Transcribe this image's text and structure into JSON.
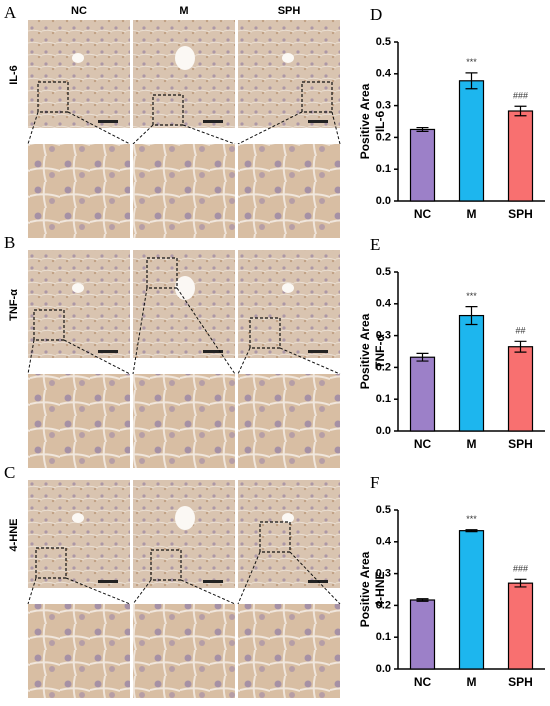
{
  "image_panels": {
    "panel_labels": [
      "A",
      "B",
      "C"
    ],
    "columns": [
      "NC",
      "M",
      "SPH"
    ],
    "rows": [
      "IL-6",
      "TNF-α",
      "4-HNE"
    ]
  },
  "chart_data": [
    {
      "type": "bar",
      "panel_label": "D",
      "ylabel_lines": [
        "Positive Area",
        "IL-6"
      ],
      "categories": [
        "NC",
        "M",
        "SPH"
      ],
      "values": [
        0.225,
        0.378,
        0.283
      ],
      "errors": [
        0.006,
        0.025,
        0.015
      ],
      "colors": [
        "#9c80c8",
        "#1db6ee",
        "#f87070"
      ],
      "annotations": [
        "***",
        "###"
      ],
      "ylim": [
        0,
        0.5
      ],
      "yticks": [
        {
          "value": 0,
          "label": "0.0"
        },
        0.1,
        0.2,
        0.3,
        0.4,
        0.5
      ]
    },
    {
      "type": "bar",
      "panel_label": "E",
      "ylabel_lines": [
        "Positive Area",
        "TNF-α"
      ],
      "categories": [
        "NC",
        "M",
        "SPH"
      ],
      "values": [
        0.232,
        0.363,
        0.265
      ],
      "errors": [
        0.012,
        0.028,
        0.017
      ],
      "colors": [
        "#9c80c8",
        "#1db6ee",
        "#f87070"
      ],
      "annotations": [
        "***",
        "##"
      ],
      "ylim": [
        0,
        0.5
      ],
      "yticks": [
        {
          "value": 0,
          "label": "0.0"
        },
        0.1,
        0.2,
        0.3,
        0.4,
        0.5
      ]
    },
    {
      "type": "bar",
      "panel_label": "F",
      "ylabel_lines": [
        "Positive Area",
        "4-HNE"
      ],
      "categories": [
        "NC",
        "M",
        "SPH"
      ],
      "values": [
        0.217,
        0.435,
        0.27
      ],
      "errors": [
        0.004,
        0.003,
        0.012
      ],
      "colors": [
        "#9c80c8",
        "#1db6ee",
        "#f87070"
      ],
      "annotations": [
        "***",
        "###"
      ],
      "ylim": [
        0,
        0.5
      ],
      "yticks": [
        {
          "value": 0,
          "label": "0.0"
        },
        0.1,
        0.2,
        0.3,
        0.4,
        0.5
      ]
    }
  ]
}
